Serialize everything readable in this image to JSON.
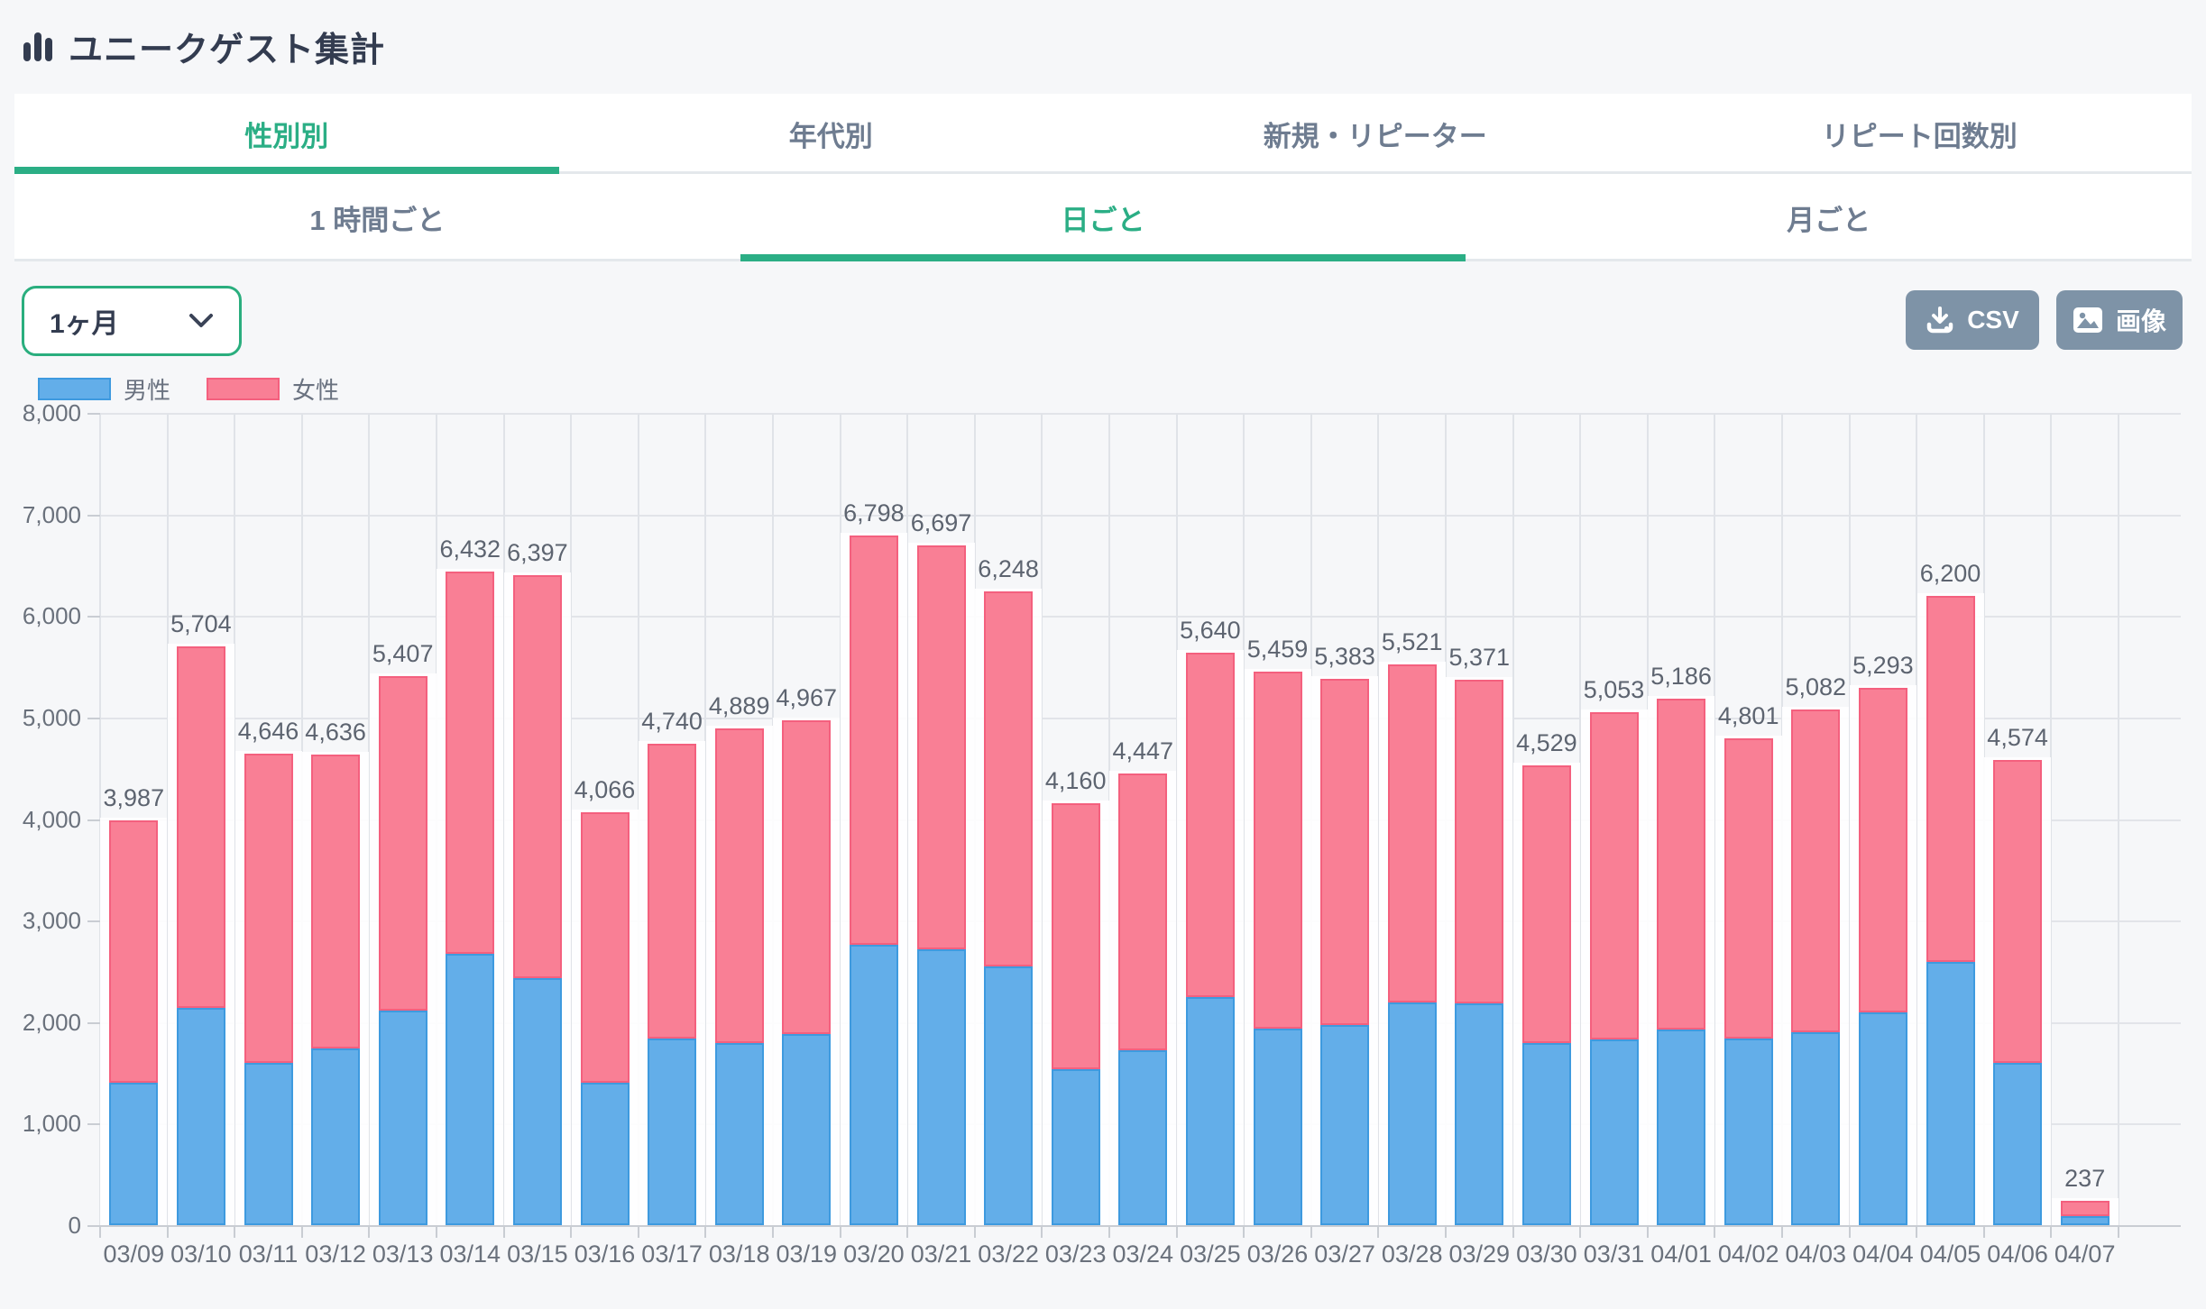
{
  "header": {
    "title": "ユニークゲスト集計"
  },
  "tabs": {
    "items": [
      {
        "label": "性別別",
        "active": true
      },
      {
        "label": "年代別",
        "active": false
      },
      {
        "label": "新規・リピーター",
        "active": false
      },
      {
        "label": "リピート回数別",
        "active": false
      }
    ]
  },
  "subtabs": {
    "items": [
      {
        "label": "1 時間ごと",
        "active": false
      },
      {
        "label": "日ごと",
        "active": true
      },
      {
        "label": "月ごと",
        "active": false
      }
    ]
  },
  "toolbar": {
    "period_value": "1ヶ月",
    "csv_label": "CSV",
    "image_label": "画像"
  },
  "legend": {
    "male_label": "男性",
    "female_label": "女性"
  },
  "colors": {
    "accent_green": "#2bae85",
    "male_fill": "#63aee9",
    "male_border": "#3e9adf",
    "female_fill": "#f97f95",
    "female_border": "#f4607e",
    "button_slate": "#7e93a7",
    "title_text": "#333c50"
  },
  "chart_data": {
    "type": "bar",
    "stacked": true,
    "title": "",
    "xlabel": "",
    "ylabel": "",
    "ylim": [
      0,
      8000
    ],
    "ytick_step": 1000,
    "ytick_labels": [
      "0",
      "1,000",
      "2,000",
      "3,000",
      "4,000",
      "5,000",
      "6,000",
      "7,000",
      "8,000"
    ],
    "grid": true,
    "legend_position": "top-left",
    "categories": [
      "03/09",
      "03/10",
      "03/11",
      "03/12",
      "03/13",
      "03/14",
      "03/15",
      "03/16",
      "03/17",
      "03/18",
      "03/19",
      "03/20",
      "03/21",
      "03/22",
      "03/23",
      "03/24",
      "03/25",
      "03/26",
      "03/27",
      "03/28",
      "03/29",
      "03/30",
      "03/31",
      "04/01",
      "04/02",
      "04/03",
      "04/04",
      "04/05",
      "04/06",
      "04/07"
    ],
    "series": [
      {
        "name": "男性",
        "values": [
          1400,
          2140,
          1600,
          1740,
          2115,
          2670,
          2430,
          1400,
          1835,
          1790,
          1880,
          2765,
          2720,
          2550,
          1540,
          1725,
          2245,
          1940,
          1970,
          2190,
          2185,
          1790,
          1830,
          1930,
          1840,
          1900,
          2095,
          2595,
          1595,
          85
        ]
      },
      {
        "name": "女性",
        "values": [
          2587,
          3564,
          3046,
          2896,
          3292,
          3762,
          3967,
          2666,
          2905,
          3099,
          3087,
          4033,
          3977,
          3698,
          2620,
          2722,
          3395,
          3519,
          3413,
          3331,
          3186,
          2739,
          3223,
          3256,
          2961,
          3182,
          3198,
          3605,
          2979,
          152
        ]
      }
    ],
    "totals": [
      3987,
      5704,
      4646,
      4636,
      5407,
      6432,
      6397,
      4066,
      4740,
      4889,
      4967,
      6798,
      6697,
      6248,
      4160,
      4447,
      5640,
      5459,
      5383,
      5521,
      5371,
      4529,
      5053,
      5186,
      4801,
      5082,
      5293,
      6200,
      4574,
      237
    ]
  }
}
